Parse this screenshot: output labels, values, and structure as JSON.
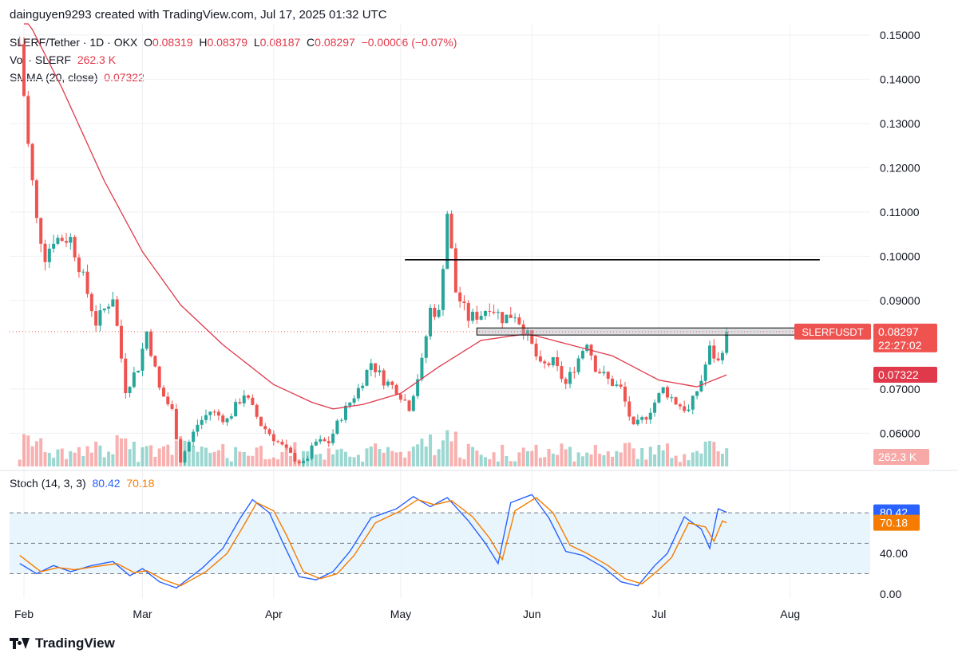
{
  "caption": "dainguyen9293 created with TradingView.com, Jul 17, 2025 01:32 UTC",
  "brand": "TradingView",
  "legend": {
    "symbol": "SLERF/Tether · 1D · OKX",
    "o_label": "O",
    "o_value": "0.08319",
    "h_label": "H",
    "h_value": "0.08379",
    "l_label": "L",
    "l_value": "0.08187",
    "c_label": "C",
    "c_value": "0.08297",
    "change": "−0.00006 (−0.07%)",
    "vol_label": "Vol · SLERF",
    "vol_value": "262.3 K",
    "smma_label": "SMMA (20, close)",
    "smma_value": "0.07322",
    "stoch_label": "Stoch (14, 3, 3)",
    "stoch_k": "80.42",
    "stoch_d": "70.18"
  },
  "colors": {
    "up": "#26a69a",
    "down": "#ef5350",
    "smma": "#e0394b",
    "stoch_k": "#2962ff",
    "stoch_d": "#f57c00",
    "band": "#e3f2fd",
    "grid": "#eef0f3",
    "axis_text": "#131722"
  },
  "chart_data": [
    {
      "type": "candlestick",
      "title": "SLERF/Tether · 1D · OKX",
      "x_range": [
        "2025-02-01",
        "2025-08-20"
      ],
      "ylim": [
        0.0525,
        0.1525
      ],
      "y_ticks": [
        "0.15000",
        "0.14000",
        "0.13000",
        "0.12000",
        "0.11000",
        "0.10000",
        "0.09000",
        "0.07000",
        "0.06000"
      ],
      "x_ticks": [
        "Feb",
        "Mar",
        "Apr",
        "May",
        "Jun",
        "Jul",
        "Aug"
      ],
      "last_price": 0.08297,
      "last_price_label": "0.08297",
      "symbol_tag": "SLERFUSDT",
      "countdown": "22:27:02",
      "smma_last_label": "0.07322",
      "volume_last_label": "262.3 K",
      "anchors_close": [
        [
          "2025-01-31",
          0.148
        ],
        [
          "2025-02-02",
          0.125
        ],
        [
          "2025-02-04",
          0.108
        ],
        [
          "2025-02-06",
          0.1
        ],
        [
          "2025-02-08",
          0.104
        ],
        [
          "2025-02-12",
          0.104
        ],
        [
          "2025-02-15",
          0.095
        ],
        [
          "2025-02-18",
          0.085
        ],
        [
          "2025-02-22",
          0.091
        ],
        [
          "2025-02-25",
          0.07
        ],
        [
          "2025-02-28",
          0.075
        ],
        [
          "2025-03-02",
          0.083
        ],
        [
          "2025-03-05",
          0.07
        ],
        [
          "2025-03-08",
          0.065
        ],
        [
          "2025-03-10",
          0.054
        ],
        [
          "2025-03-14",
          0.062
        ],
        [
          "2025-03-17",
          0.065
        ],
        [
          "2025-03-21",
          0.063
        ],
        [
          "2025-03-25",
          0.069
        ],
        [
          "2025-03-29",
          0.062
        ],
        [
          "2025-04-02",
          0.058
        ],
        [
          "2025-04-05",
          0.055
        ],
        [
          "2025-04-08",
          0.053
        ],
        [
          "2025-04-11",
          0.058
        ],
        [
          "2025-04-14",
          0.058
        ],
        [
          "2025-04-17",
          0.064
        ],
        [
          "2025-04-21",
          0.07
        ],
        [
          "2025-04-24",
          0.076
        ],
        [
          "2025-04-27",
          0.072
        ],
        [
          "2025-04-30",
          0.07
        ],
        [
          "2025-05-03",
          0.066
        ],
        [
          "2025-05-06",
          0.076
        ],
        [
          "2025-05-08",
          0.088
        ],
        [
          "2025-05-10",
          0.087
        ],
        [
          "2025-05-12",
          0.11
        ],
        [
          "2025-05-14",
          0.092
        ],
        [
          "2025-05-17",
          0.086
        ],
        [
          "2025-05-20",
          0.087
        ],
        [
          "2025-05-22",
          0.089
        ],
        [
          "2025-05-25",
          0.086
        ],
        [
          "2025-05-28",
          0.087
        ],
        [
          "2025-05-31",
          0.082
        ],
        [
          "2025-06-03",
          0.075
        ],
        [
          "2025-06-06",
          0.076
        ],
        [
          "2025-06-09",
          0.071
        ],
        [
          "2025-06-12",
          0.077
        ],
        [
          "2025-06-14",
          0.081
        ],
        [
          "2025-06-16",
          0.075
        ],
        [
          "2025-06-19",
          0.072
        ],
        [
          "2025-06-22",
          0.07
        ],
        [
          "2025-06-25",
          0.061
        ],
        [
          "2025-06-28",
          0.064
        ],
        [
          "2025-07-02",
          0.07
        ],
        [
          "2025-07-05",
          0.067
        ],
        [
          "2025-07-08",
          0.065
        ],
        [
          "2025-07-11",
          0.072
        ],
        [
          "2025-07-13",
          0.079
        ],
        [
          "2025-07-15",
          0.076
        ],
        [
          "2025-07-17",
          0.08297
        ]
      ],
      "anchors_smma": [
        [
          "2025-02-01",
          0.155
        ],
        [
          "2025-02-10",
          0.138
        ],
        [
          "2025-02-20",
          0.117
        ],
        [
          "2025-03-01",
          0.101
        ],
        [
          "2025-03-10",
          0.089
        ],
        [
          "2025-03-20",
          0.08
        ],
        [
          "2025-04-01",
          0.071
        ],
        [
          "2025-04-10",
          0.067
        ],
        [
          "2025-04-15",
          0.0655
        ],
        [
          "2025-04-22",
          0.0665
        ],
        [
          "2025-05-01",
          0.069
        ],
        [
          "2025-05-10",
          0.075
        ],
        [
          "2025-05-20",
          0.081
        ],
        [
          "2025-05-31",
          0.0825
        ],
        [
          "2025-06-10",
          0.08
        ],
        [
          "2025-06-20",
          0.0775
        ],
        [
          "2025-07-01",
          0.072
        ],
        [
          "2025-07-10",
          0.0705
        ],
        [
          "2025-07-17",
          0.0732
        ]
      ],
      "annotations": [
        {
          "kind": "horizontal_line",
          "price": 0.0992,
          "from": "2025-05-02",
          "to": "2025-08-08"
        },
        {
          "kind": "box",
          "price_low": 0.0822,
          "price_high": 0.0838,
          "from": "2025-05-19",
          "to": "2025-08-05"
        }
      ]
    },
    {
      "type": "line",
      "title": "Stoch (14, 3, 3)",
      "ylim": [
        -4,
        110
      ],
      "y_ticks": [
        "40.00",
        "0.00"
      ],
      "band": [
        20,
        80
      ],
      "midline": 50,
      "series": [
        {
          "name": "%K",
          "last": 80.42,
          "last_label": "80.42",
          "anchors": [
            [
              "2025-01-31",
              30
            ],
            [
              "2025-02-04",
              20
            ],
            [
              "2025-02-08",
              28
            ],
            [
              "2025-02-12",
              22
            ],
            [
              "2025-02-17",
              28
            ],
            [
              "2025-02-22",
              32
            ],
            [
              "2025-02-26",
              18
            ],
            [
              "2025-03-01",
              25
            ],
            [
              "2025-03-05",
              12
            ],
            [
              "2025-03-09",
              6
            ],
            [
              "2025-03-15",
              25
            ],
            [
              "2025-03-20",
              45
            ],
            [
              "2025-03-24",
              74
            ],
            [
              "2025-03-27",
              93
            ],
            [
              "2025-03-31",
              80
            ],
            [
              "2025-04-03",
              52
            ],
            [
              "2025-04-07",
              17
            ],
            [
              "2025-04-11",
              14
            ],
            [
              "2025-04-15",
              22
            ],
            [
              "2025-04-19",
              42
            ],
            [
              "2025-04-24",
              75
            ],
            [
              "2025-04-30",
              84
            ],
            [
              "2025-05-04",
              96
            ],
            [
              "2025-05-08",
              86
            ],
            [
              "2025-05-12",
              95
            ],
            [
              "2025-05-17",
              72
            ],
            [
              "2025-05-21",
              50
            ],
            [
              "2025-05-24",
              30
            ],
            [
              "2025-05-27",
              90
            ],
            [
              "2025-06-01",
              98
            ],
            [
              "2025-06-05",
              75
            ],
            [
              "2025-06-09",
              42
            ],
            [
              "2025-06-13",
              38
            ],
            [
              "2025-06-18",
              26
            ],
            [
              "2025-06-22",
              12
            ],
            [
              "2025-06-26",
              8
            ],
            [
              "2025-06-30",
              28
            ],
            [
              "2025-07-03",
              40
            ],
            [
              "2025-07-07",
              76
            ],
            [
              "2025-07-11",
              64
            ],
            [
              "2025-07-13",
              45
            ],
            [
              "2025-07-15",
              84
            ],
            [
              "2025-07-17",
              80.42
            ]
          ]
        },
        {
          "name": "%D",
          "last": 70.18,
          "last_label": "70.18",
          "anchors": [
            [
              "2025-01-31",
              38
            ],
            [
              "2025-02-05",
              22
            ],
            [
              "2025-02-09",
              26
            ],
            [
              "2025-02-13",
              24
            ],
            [
              "2025-02-18",
              27
            ],
            [
              "2025-02-23",
              30
            ],
            [
              "2025-02-27",
              21
            ],
            [
              "2025-03-02",
              23
            ],
            [
              "2025-03-06",
              14
            ],
            [
              "2025-03-10",
              8
            ],
            [
              "2025-03-16",
              22
            ],
            [
              "2025-03-21",
              40
            ],
            [
              "2025-03-25",
              68
            ],
            [
              "2025-03-28",
              90
            ],
            [
              "2025-04-01",
              82
            ],
            [
              "2025-04-04",
              58
            ],
            [
              "2025-04-08",
              22
            ],
            [
              "2025-04-12",
              15
            ],
            [
              "2025-04-16",
              20
            ],
            [
              "2025-04-20",
              38
            ],
            [
              "2025-04-25",
              70
            ],
            [
              "2025-05-01",
              82
            ],
            [
              "2025-05-05",
              93
            ],
            [
              "2025-05-09",
              88
            ],
            [
              "2025-05-13",
              92
            ],
            [
              "2025-05-18",
              76
            ],
            [
              "2025-05-22",
              55
            ],
            [
              "2025-05-25",
              34
            ],
            [
              "2025-05-28",
              82
            ],
            [
              "2025-06-02",
              95
            ],
            [
              "2025-06-06",
              80
            ],
            [
              "2025-06-10",
              48
            ],
            [
              "2025-06-14",
              40
            ],
            [
              "2025-06-19",
              28
            ],
            [
              "2025-06-23",
              15
            ],
            [
              "2025-06-27",
              10
            ],
            [
              "2025-07-01",
              24
            ],
            [
              "2025-07-04",
              36
            ],
            [
              "2025-07-08",
              70
            ],
            [
              "2025-07-12",
              66
            ],
            [
              "2025-07-14",
              52
            ],
            [
              "2025-07-16",
              72
            ],
            [
              "2025-07-17",
              70.18
            ]
          ]
        }
      ]
    }
  ]
}
